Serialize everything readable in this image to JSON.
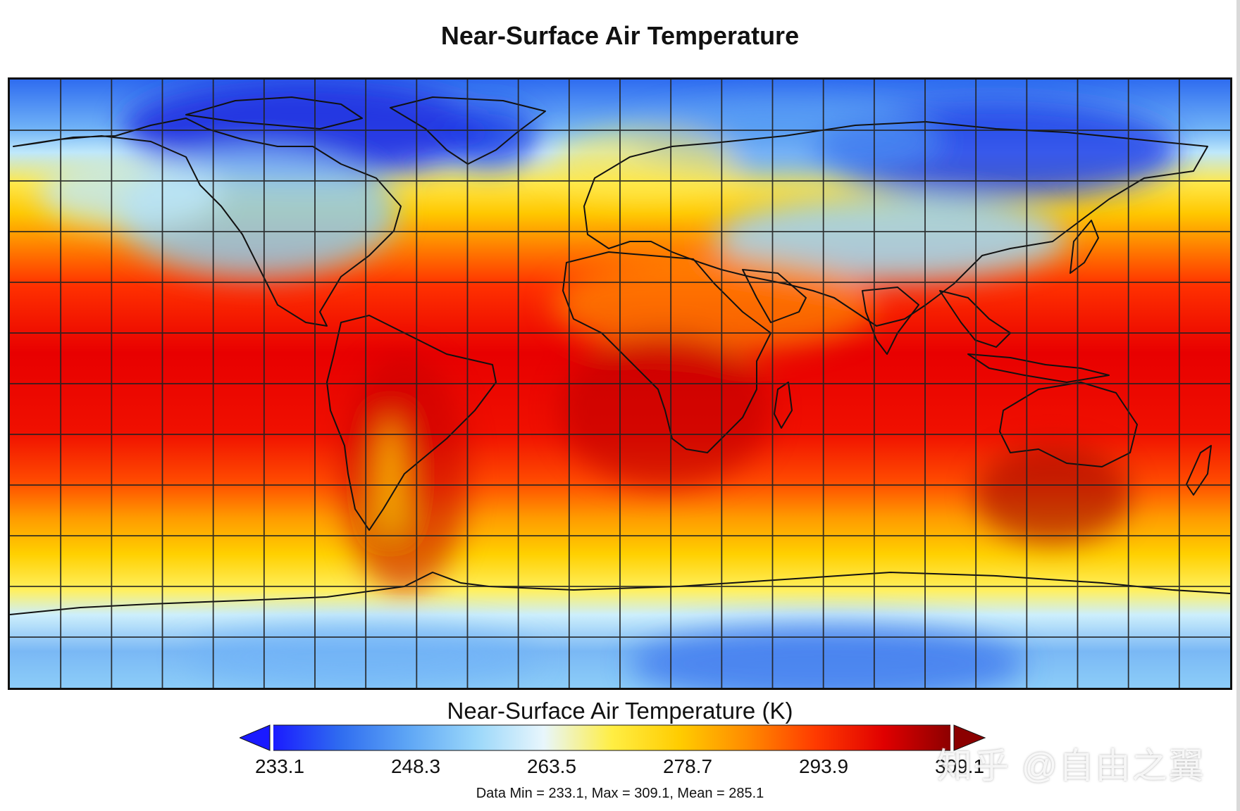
{
  "title": "Near-Surface Air Temperature",
  "colorbar": {
    "title": "Near-Surface Air Temperature (K)",
    "ticks": [
      "233.1",
      "248.3",
      "263.5",
      "278.7",
      "293.9",
      "309.1"
    ],
    "min": 233.1,
    "max": 309.1,
    "stops": [
      "#1a1aff",
      "#2f6cf0",
      "#5ea6f5",
      "#9ad7fa",
      "#e8f6fc",
      "#ffee44",
      "#ffcc00",
      "#ff8a00",
      "#ff3a00",
      "#e00000",
      "#8b0000"
    ]
  },
  "stats": "Data Min = 233.1, Max = 309.1, Mean = 285.1",
  "watermark": "知乎 @自由之翼",
  "map": {
    "projection": "equirectangular",
    "grid": true,
    "grid_spacing_deg": 15,
    "lon_range": [
      -180,
      180
    ],
    "lat_range": [
      -90,
      90
    ]
  }
}
